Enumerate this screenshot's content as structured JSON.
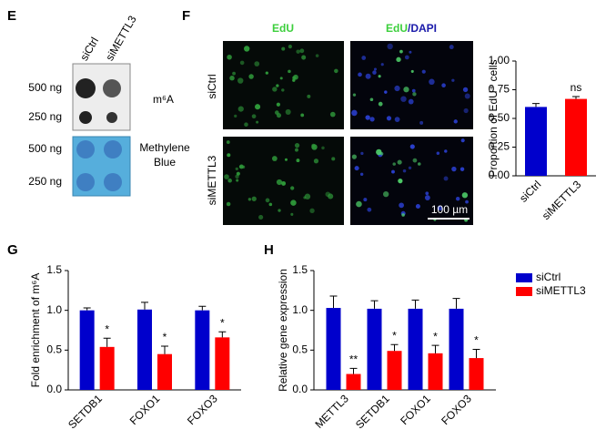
{
  "figure": {
    "panels": [
      "E",
      "F",
      "G",
      "H"
    ],
    "blot": {
      "columns": [
        "siCtrl",
        "siMETTL3"
      ],
      "m6a_rows": [
        "500 ng",
        "250 ng"
      ],
      "m6a_label": "m⁶A",
      "mb_rows": [
        "500 ng",
        "250 ng"
      ],
      "mb_label": "Methylene Blue"
    },
    "imaging": {
      "col1": "EdU",
      "col2a": "EdU",
      "col2b": "/DAPI",
      "rows": [
        "siCtrl",
        "siMETTL3"
      ],
      "scale": "100 µm"
    }
  },
  "chart_data": [
    {
      "type": "bar",
      "y_label": "Proportion of EdU⁺ cells",
      "categories": [
        "siCtrl",
        "siMETTL3"
      ],
      "values": [
        0.6,
        0.67
      ],
      "errors": [
        0.03,
        0.02
      ],
      "colors": [
        "#0000cc",
        "#ff0000"
      ],
      "significance": [
        null,
        "ns"
      ],
      "ylim": [
        0,
        1
      ],
      "yticks": [
        {
          "value": 0,
          "label": "0.00"
        },
        0.25,
        {
          "value": 0.5,
          "label": "0.50"
        },
        0.75,
        {
          "value": 1,
          "label": "1.00"
        }
      ]
    },
    {
      "type": "bar",
      "y_label": "Fold enrichment of m⁶A",
      "categories": [
        "SETDB1",
        "FOXO1",
        "FOXO3"
      ],
      "series": [
        {
          "name": "siCtrl",
          "color": "#0000cc",
          "values": [
            1.0,
            1.01,
            1.0
          ],
          "errors": [
            0.03,
            0.09,
            0.05
          ]
        },
        {
          "name": "siMETTL3",
          "color": "#ff0000",
          "values": [
            0.54,
            0.45,
            0.66
          ],
          "errors": [
            0.11,
            0.1,
            0.07
          ],
          "significance": [
            "*",
            "*",
            "*"
          ]
        }
      ],
      "ylim": [
        0,
        1.5
      ],
      "yticks": [
        {
          "value": 0,
          "label": "0.0"
        },
        0.5,
        {
          "value": 1,
          "label": "1.0"
        },
        1.5
      ]
    },
    {
      "type": "bar",
      "y_label": "Relative gene expression",
      "categories": [
        "METTL3",
        "SETDB1",
        "FOXO1",
        "FOXO3"
      ],
      "series": [
        {
          "name": "siCtrl",
          "color": "#0000cc",
          "values": [
            1.03,
            1.02,
            1.02,
            1.02
          ],
          "errors": [
            0.15,
            0.1,
            0.11,
            0.13
          ]
        },
        {
          "name": "siMETTL3",
          "color": "#ff0000",
          "values": [
            0.2,
            0.49,
            0.46,
            0.4
          ],
          "errors": [
            0.07,
            0.08,
            0.1,
            0.11
          ],
          "significance": [
            "**",
            "*",
            "*",
            "*"
          ]
        }
      ],
      "ylim": [
        0,
        1.5
      ],
      "yticks": [
        {
          "value": 0,
          "label": "0.0"
        },
        0.5,
        {
          "value": 1,
          "label": "1.0"
        },
        1.5
      ],
      "legend": "right"
    }
  ]
}
